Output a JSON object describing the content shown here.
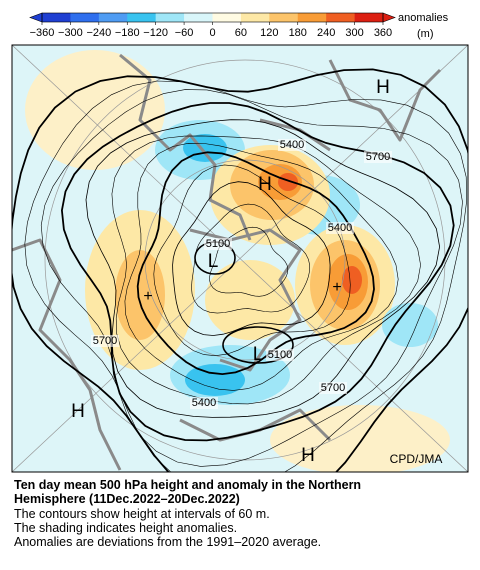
{
  "colorbar": {
    "ticks": [
      {
        "value": -360,
        "label": "−360"
      },
      {
        "value": -300,
        "label": "−300"
      },
      {
        "value": -240,
        "label": "−240"
      },
      {
        "value": -180,
        "label": "−180"
      },
      {
        "value": -120,
        "label": "−120"
      },
      {
        "value": -60,
        "label": "−60"
      },
      0,
      60,
      120,
      180,
      240,
      300,
      360
    ],
    "colors": [
      "#1f3fd2",
      "#2f6fee",
      "#4f9cf3",
      "#39c3ef",
      "#9fe6f7",
      "#d9f6fa",
      "#fffbe3",
      "#fde8a6",
      "#fcc46a",
      "#f89c36",
      "#ef5f22",
      "#dc1f12"
    ],
    "label": "anomalies",
    "unit": "(m)"
  },
  "map": {
    "highs": [
      "H",
      "H",
      "H",
      "H"
    ],
    "lows": [
      "L",
      "L"
    ],
    "signs": [
      "+",
      "+"
    ],
    "contour_labels": [
      "5400",
      "5700",
      "5100",
      "5400",
      "5700",
      "5100",
      "5400",
      "5700"
    ],
    "credit": "CPD/JMA"
  },
  "caption": {
    "title_lines": [
      "Ten day mean 500 hPa height and anomaly in the Northern",
      "Hemisphere (11Dec.2022–20Dec.2022)"
    ],
    "lines": [
      "The contours show height at intervals of 60 m.",
      "The shading indicates height anomalies.",
      "Anomalies are deviations from the 1991–2020 average."
    ]
  }
}
